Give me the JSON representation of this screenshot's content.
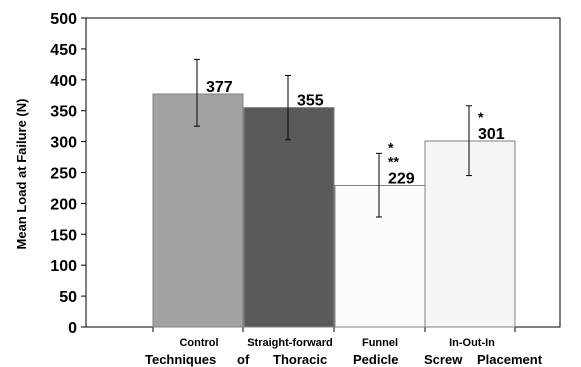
{
  "chart_data": {
    "type": "bar",
    "title": "",
    "xlabel_words": [
      "Techniques",
      "of",
      "Thoracic",
      "Pedicle",
      "Screw",
      "Placement"
    ],
    "ylabel": "Mean Load at Failure (N)",
    "ylim": [
      0,
      500
    ],
    "yticks": [
      0,
      50,
      100,
      150,
      200,
      250,
      300,
      350,
      400,
      450,
      500
    ],
    "grid": false,
    "legend": "none",
    "categories": [
      "Control",
      "Straight-forward",
      "Funnel",
      "In-Out-In"
    ],
    "values": [
      377,
      355,
      229,
      301
    ],
    "data_labels": [
      "377",
      "355",
      "229",
      "301"
    ],
    "error_bars": [
      {
        "low": 325,
        "high": 433
      },
      {
        "low": 303,
        "high": 407
      },
      {
        "low": 178,
        "high": 281
      },
      {
        "low": 245,
        "high": 358
      }
    ],
    "significance_marks": [
      [],
      [],
      [
        "*",
        "**"
      ],
      [
        "*"
      ]
    ],
    "colors": [
      "#a2a2a2",
      "#5a5a5a",
      "#fcfcfc",
      "#f5f5f5"
    ],
    "edge_color": "#808080",
    "error_color": "#000000"
  }
}
